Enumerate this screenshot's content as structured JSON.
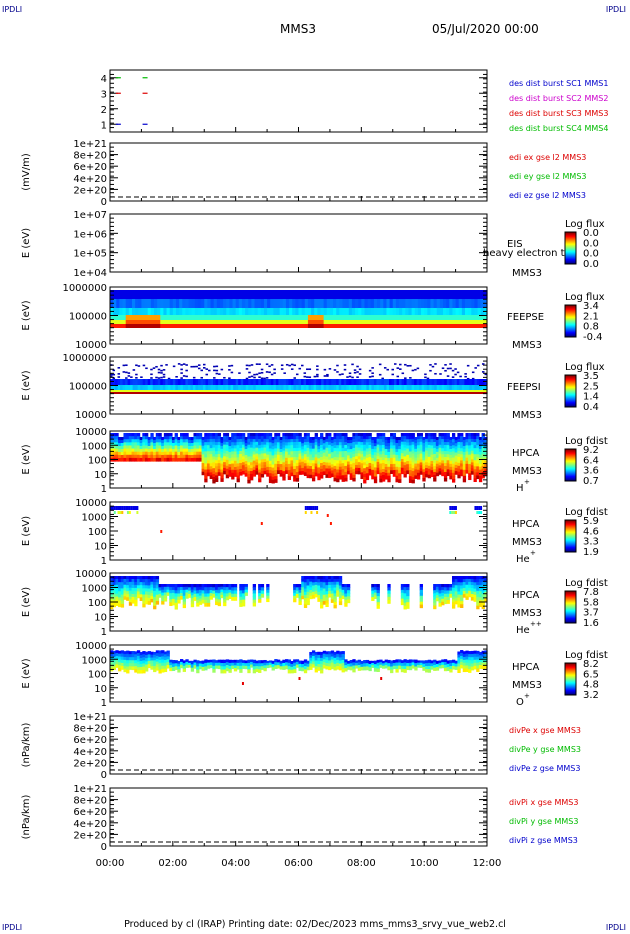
{
  "header": {
    "corner_tl": "IPDLI",
    "corner_tr": "IPDLI",
    "corner_bl": "IPDLI",
    "corner_br": "IPDLI",
    "center_title": "MMS3",
    "date": "05/Jul/2020 00:00"
  },
  "footer": {
    "text": "Produced by cl (IRAP)   Printing date: 02/Dec/2023   mms_mms3_srvy_vue_web2.cl"
  },
  "time_axis": {
    "ticks": [
      "00:00",
      "02:00",
      "04:00",
      "06:00",
      "08:00",
      "10:00",
      "12:00"
    ]
  },
  "chart_data": [
    {
      "type": "line",
      "panel": "burst",
      "yticks": [
        "4",
        "3",
        "2",
        "1"
      ],
      "ylim": [
        0.5,
        4.5
      ],
      "series": [
        {
          "name": "des dist burst SC1 MMS1",
          "color": "#0000cc",
          "y": 1,
          "x": [
            0.25,
            1.1
          ]
        },
        {
          "name": "des dist burst SC2 MMS2",
          "color": "#cc00cc",
          "y": 2,
          "x": []
        },
        {
          "name": "des dist burst SC3 MMS3",
          "color": "#dd0000",
          "y": 3,
          "x": [
            0.25,
            1.1
          ]
        },
        {
          "name": "des dist burst SC4 MMS4",
          "color": "#00bb00",
          "y": 4,
          "x": [
            0.25,
            1.1
          ]
        }
      ]
    },
    {
      "type": "line",
      "panel": "edi",
      "ylabel": "(mV/m)",
      "yticks": [
        "1e+21",
        "8e+20",
        "6e+20",
        "4e+20",
        "2e+20",
        "0"
      ],
      "legend": [
        {
          "name": "edi ex gse l2 MMS3",
          "color": "#dd0000"
        },
        {
          "name": "edi ey gse l2 MMS3",
          "color": "#00bb00"
        },
        {
          "name": "edi ez gse l2 MMS3",
          "color": "#0000cc"
        }
      ]
    },
    {
      "type": "heatmap",
      "panel": "EIS",
      "ylabel": "E (eV)",
      "yticks": [
        "1e+07",
        "1e+06",
        "1e+05",
        "1e+04"
      ],
      "label": "EIS",
      "label2": "MMS3",
      "overlay_text": "heavy electron to",
      "colorbar": {
        "title": "Log flux",
        "ticks": [
          "0.0",
          "0.0",
          "0.0",
          "0.0"
        ]
      }
    },
    {
      "type": "heatmap",
      "panel": "FEEPSE",
      "ylabel": "E (eV)",
      "yticks": [
        "1000000",
        "100000",
        "10000"
      ],
      "label": "FEEPSE",
      "label2": "MMS3",
      "colorbar": {
        "title": "Log flux",
        "ticks": [
          "3.4",
          "2.1",
          "0.8",
          "-0.4"
        ]
      }
    },
    {
      "type": "heatmap",
      "panel": "FEEPSI",
      "ylabel": "E (eV)",
      "yticks": [
        "1000000",
        "100000",
        "10000"
      ],
      "label": "FEEPSI",
      "label2": "MMS3",
      "colorbar": {
        "title": "Log flux",
        "ticks": [
          "3.5",
          "2.5",
          "1.4",
          "0.4"
        ]
      }
    },
    {
      "type": "heatmap",
      "panel": "HPCA-H",
      "ylabel": "E (eV)",
      "yticks": [
        "10000",
        "1000",
        "100",
        "10",
        "1"
      ],
      "label": "HPCA",
      "label2": "MMS3",
      "species": "H",
      "charge": "+",
      "colorbar": {
        "title": "Log fdist",
        "ticks": [
          "9.2",
          "6.4",
          "3.6",
          "0.7"
        ]
      }
    },
    {
      "type": "heatmap",
      "panel": "HPCA-He+",
      "ylabel": "E (eV)",
      "yticks": [
        "10000",
        "1000",
        "100",
        "10",
        "1"
      ],
      "label": "HPCA",
      "label2": "MMS3",
      "species": "He",
      "charge": "+",
      "colorbar": {
        "title": "Log fdist",
        "ticks": [
          "5.9",
          "4.6",
          "3.3",
          "1.9"
        ]
      }
    },
    {
      "type": "heatmap",
      "panel": "HPCA-He++",
      "ylabel": "E (eV)",
      "yticks": [
        "10000",
        "1000",
        "100",
        "10",
        "1"
      ],
      "label": "HPCA",
      "label2": "MMS3",
      "species": "He",
      "charge": "++",
      "colorbar": {
        "title": "Log fdist",
        "ticks": [
          "7.8",
          "5.8",
          "3.7",
          "1.6"
        ]
      }
    },
    {
      "type": "heatmap",
      "panel": "HPCA-O+",
      "ylabel": "E (eV)",
      "yticks": [
        "10000",
        "1000",
        "100",
        "10",
        "1"
      ],
      "label": "HPCA",
      "label2": "MMS3",
      "species": "O",
      "charge": "+",
      "colorbar": {
        "title": "Log fdist",
        "ticks": [
          "8.2",
          "6.5",
          "4.8",
          "3.2"
        ]
      }
    },
    {
      "type": "line",
      "panel": "divPe",
      "ylabel": "(nPa/km)",
      "yticks": [
        "1e+21",
        "8e+20",
        "6e+20",
        "4e+20",
        "2e+20",
        "0"
      ],
      "legend": [
        {
          "name": "divPe x gse MMS3",
          "color": "#dd0000"
        },
        {
          "name": "divPe y gse MMS3",
          "color": "#00bb00"
        },
        {
          "name": "divPe z gse MMS3",
          "color": "#0000cc"
        }
      ]
    },
    {
      "type": "line",
      "panel": "divPi",
      "ylabel": "(nPa/km)",
      "yticks": [
        "1e+21",
        "8e+20",
        "6e+20",
        "4e+20",
        "2e+20",
        "0"
      ],
      "legend": [
        {
          "name": "divPi x gse MMS3",
          "color": "#dd0000"
        },
        {
          "name": "divPi y gse MMS3",
          "color": "#00bb00"
        },
        {
          "name": "divPi z gse MMS3",
          "color": "#0000cc"
        }
      ]
    }
  ]
}
